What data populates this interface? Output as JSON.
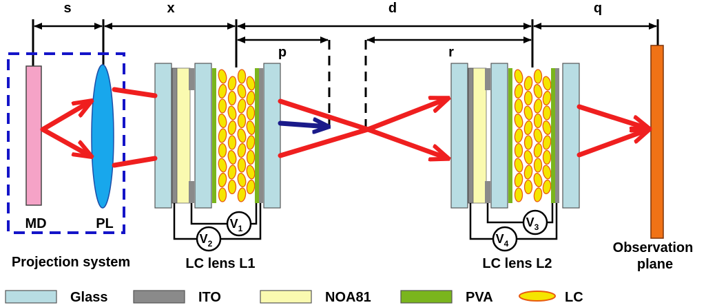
{
  "dimensions": {
    "s": "s",
    "x": "x",
    "d": "d",
    "q": "q",
    "p": "p",
    "r": "r"
  },
  "labels": {
    "md": "MD",
    "pl": "PL",
    "projection_system": "Projection system",
    "lens1": "LC lens L1",
    "lens2": "LC lens L2",
    "observation_line1": "Observation",
    "observation_line2": "plane"
  },
  "voltages": {
    "v1": {
      "base": "V",
      "sub": "1"
    },
    "v2": {
      "base": "V",
      "sub": "2"
    },
    "v3": {
      "base": "V",
      "sub": "3"
    },
    "v4": {
      "base": "V",
      "sub": "4"
    }
  },
  "legend": [
    {
      "label": "Glass",
      "color": "#b8dde3",
      "kind": "rect"
    },
    {
      "label": "ITO",
      "color": "#8a8a8a",
      "kind": "rect"
    },
    {
      "label": "NOA81",
      "color": "#fafab0",
      "kind": "rect"
    },
    {
      "label": "PVA",
      "color": "#7ab51d",
      "kind": "rect"
    },
    {
      "label": "LC",
      "color": "#f5e500",
      "kind": "ellipse"
    }
  ],
  "colors": {
    "md_panel": "#f5a3c7",
    "pl_lens": "#18a7ec",
    "observation_plane": "#f07216",
    "ray": "#ef1f1f",
    "dark_arrow": "#1a1a8a",
    "projection_box": "#1414c8",
    "lc_border": "#e85a10"
  }
}
